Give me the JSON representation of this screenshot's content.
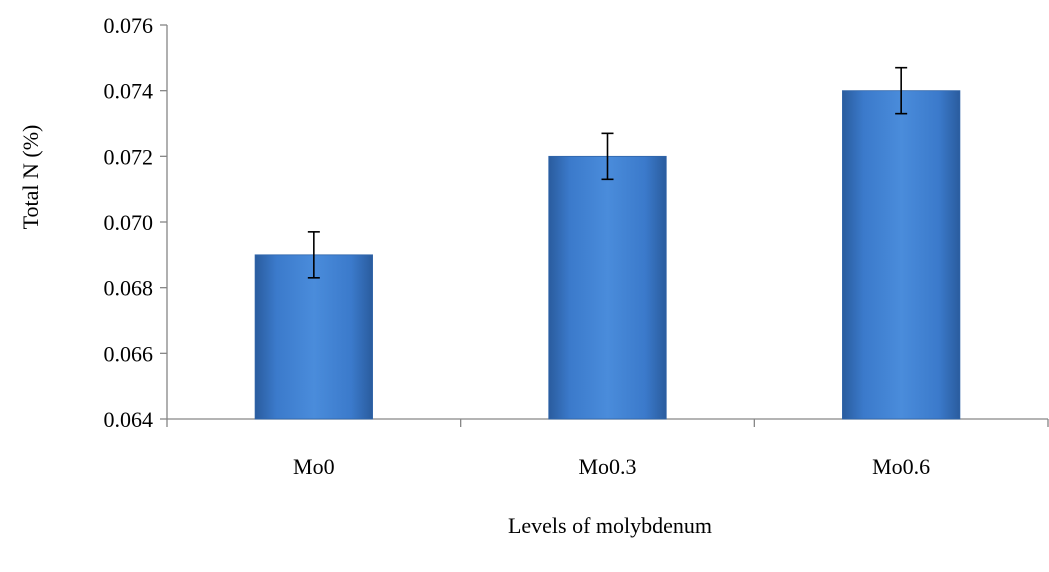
{
  "chart_data": {
    "type": "bar",
    "title": "",
    "xlabel": "Levels of molybdenum",
    "ylabel": "Total N (%)",
    "categories": [
      "Mo0",
      "Mo0.3",
      "Mo0.6"
    ],
    "values": [
      0.069,
      0.072,
      0.074
    ],
    "error": [
      0.0007,
      0.0007,
      0.0007
    ],
    "ylim": [
      0.064,
      0.076
    ],
    "yticks": [
      "0.064",
      "0.066",
      "0.068",
      "0.070",
      "0.072",
      "0.074",
      "0.076"
    ],
    "grid": false,
    "bar_color": "#3E7CC9"
  }
}
